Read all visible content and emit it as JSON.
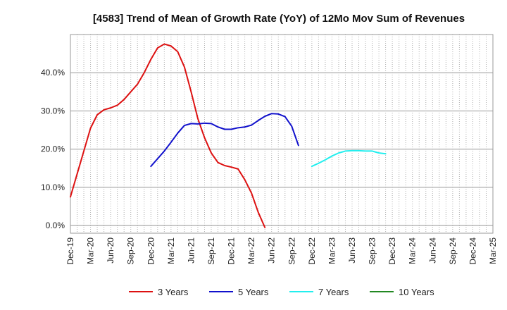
{
  "chart_data": {
    "type": "line",
    "title": "[4583]  Trend of Mean of Growth Rate (YoY) of 12Mo Mov Sum of Revenues",
    "xlabel": "",
    "ylabel": "",
    "ylim": [
      -2,
      50
    ],
    "y_ticks": [
      0,
      10,
      20,
      30,
      40
    ],
    "y_tick_labels": [
      "0.0%",
      "10.0%",
      "20.0%",
      "30.0%",
      "40.0%"
    ],
    "x_tick_labels": [
      "Dec-19",
      "Mar-20",
      "Jun-20",
      "Sep-20",
      "Dec-20",
      "Mar-21",
      "Jun-21",
      "Sep-21",
      "Dec-21",
      "Mar-22",
      "Jun-22",
      "Sep-22",
      "Dec-22",
      "Mar-23",
      "Jun-23",
      "Sep-23",
      "Dec-23",
      "Mar-24",
      "Jun-24",
      "Sep-24",
      "Dec-24",
      "Mar-25"
    ],
    "grid": true,
    "legend_position": "bottom",
    "series": [
      {
        "name": "3 Years",
        "color": "#dd1111",
        "start_index": 0,
        "values": [
          7.5,
          13.5,
          19.5,
          25.5,
          29.0,
          30.3,
          30.8,
          31.5,
          33.0,
          35.0,
          37.0,
          40.0,
          43.5,
          46.5,
          47.5,
          47.0,
          45.5,
          41.5,
          35.0,
          28.0,
          23.0,
          19.0,
          16.5,
          15.7,
          15.3,
          14.8,
          12.0,
          8.5,
          3.5,
          -0.5
        ]
      },
      {
        "name": "5 Years",
        "color": "#1111cc",
        "start_index": 12,
        "values": [
          15.5,
          17.5,
          19.5,
          21.8,
          24.2,
          26.2,
          26.7,
          26.6,
          26.8,
          26.7,
          25.8,
          25.2,
          25.2,
          25.6,
          25.8,
          26.3,
          27.5,
          28.6,
          29.3,
          29.2,
          28.5,
          26.0,
          21.0
        ]
      },
      {
        "name": "7 Years",
        "color": "#22eeee",
        "start_index": 36,
        "values": [
          15.5,
          16.3,
          17.2,
          18.2,
          19.0,
          19.5,
          19.6,
          19.6,
          19.5,
          19.5,
          19.0,
          18.8
        ]
      },
      {
        "name": "10 Years",
        "color": "#228822",
        "start_index": 0,
        "values": []
      }
    ]
  }
}
